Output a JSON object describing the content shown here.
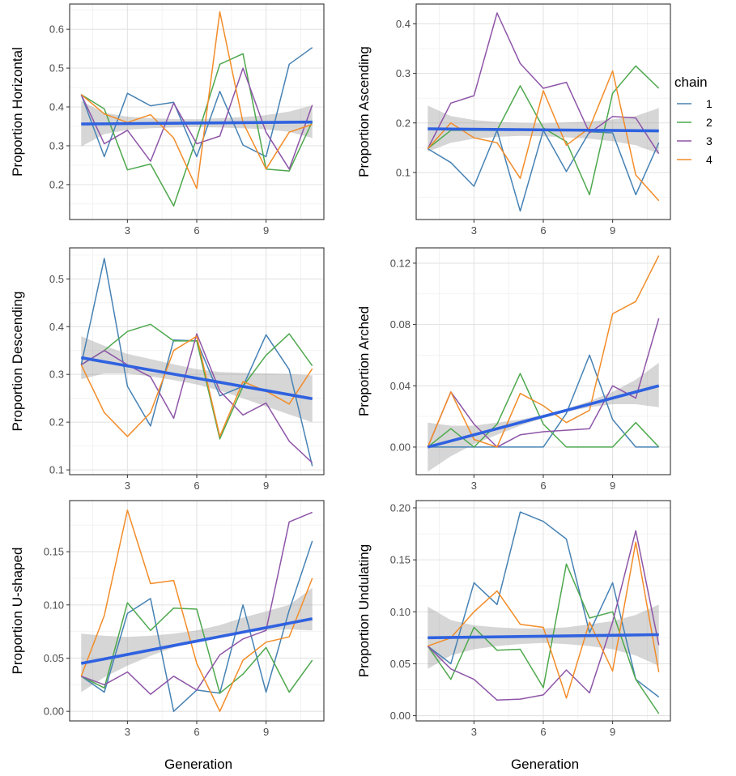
{
  "chart_data": {
    "type": "line",
    "x_title": "Generation",
    "x_ticks": [
      3,
      6,
      9
    ],
    "x_range": [
      0.5,
      11.5
    ],
    "x": [
      1,
      2,
      3,
      4,
      5,
      6,
      7,
      8,
      9,
      10,
      11
    ],
    "legend": {
      "title": "chain",
      "position": "right",
      "entries": [
        {
          "label": "1",
          "color": "#4682B4"
        },
        {
          "label": "2",
          "color": "#4DA84D"
        },
        {
          "label": "3",
          "color": "#8E55A8"
        },
        {
          "label": "4",
          "color": "#F28C28"
        }
      ]
    },
    "trend_color": "#2F62E0",
    "ribbon_color": "#999999",
    "panels": [
      {
        "id": "horizontal",
        "ylabel": "Proportion Horizontal",
        "ylim": [
          0.11,
          0.665
        ],
        "y_ticks": [
          0.2,
          0.3,
          0.4,
          0.5,
          0.6
        ],
        "y_tick_labels": [
          "0.2",
          "0.3",
          "0.4",
          "0.5",
          "0.6"
        ],
        "series": [
          {
            "name": "1",
            "values": [
              0.432,
              0.272,
              0.435,
              0.403,
              0.412,
              0.272,
              0.44,
              0.302,
              0.272,
              0.51,
              0.553
            ]
          },
          {
            "name": "2",
            "values": [
              0.432,
              0.395,
              0.238,
              0.253,
              0.145,
              0.32,
              0.51,
              0.537,
              0.24,
              0.235,
              0.362
            ]
          },
          {
            "name": "3",
            "values": [
              0.432,
              0.305,
              0.34,
              0.26,
              0.41,
              0.305,
              0.325,
              0.5,
              0.335,
              0.24,
              0.405
            ]
          },
          {
            "name": "4",
            "values": [
              0.432,
              0.382,
              0.36,
              0.38,
              0.32,
              0.19,
              0.645,
              0.36,
              0.24,
              0.335,
              0.355
            ]
          }
        ],
        "trend": {
          "start": 0.356,
          "end": 0.361
        },
        "ribbon_lower": [
          0.298,
          0.33,
          0.341,
          0.345,
          0.347,
          0.348,
          0.347,
          0.345,
          0.342,
          0.336,
          0.32
        ],
        "ribbon_upper": [
          0.415,
          0.385,
          0.375,
          0.371,
          0.369,
          0.368,
          0.371,
          0.374,
          0.379,
          0.388,
          0.404
        ]
      },
      {
        "id": "ascending",
        "ylabel": "Proportion Ascending",
        "ylim": [
          0.005,
          0.44
        ],
        "y_ticks": [
          0.1,
          0.2,
          0.3,
          0.4
        ],
        "y_tick_labels": [
          "0.1",
          "0.2",
          "0.3",
          "0.4"
        ],
        "series": [
          {
            "name": "1",
            "values": [
              0.148,
              0.12,
              0.072,
              0.185,
              0.022,
              0.185,
              0.102,
              0.182,
              0.18,
              0.055,
              0.16
            ]
          },
          {
            "name": "2",
            "values": [
              0.148,
              0.185,
              0.185,
              0.185,
              0.275,
              0.19,
              0.162,
              0.055,
              0.26,
              0.315,
              0.27
            ]
          },
          {
            "name": "3",
            "values": [
              0.148,
              0.24,
              0.255,
              0.422,
              0.32,
              0.27,
              0.282,
              0.18,
              0.213,
              0.21,
              0.138
            ]
          },
          {
            "name": "4",
            "values": [
              0.148,
              0.2,
              0.17,
              0.16,
              0.088,
              0.265,
              0.155,
              0.19,
              0.305,
              0.095,
              0.043
            ]
          }
        ],
        "trend": {
          "start": 0.188,
          "end": 0.184
        },
        "ribbon_lower": [
          0.142,
          0.16,
          0.168,
          0.172,
          0.174,
          0.173,
          0.171,
          0.168,
          0.163,
          0.155,
          0.138
        ],
        "ribbon_upper": [
          0.235,
          0.214,
          0.206,
          0.202,
          0.2,
          0.199,
          0.201,
          0.203,
          0.207,
          0.214,
          0.23
        ]
      },
      {
        "id": "descending",
        "ylabel": "Proportion Descending",
        "ylim": [
          0.09,
          0.565
        ],
        "y_ticks": [
          0.1,
          0.2,
          0.3,
          0.4,
          0.5
        ],
        "y_tick_labels": [
          "0.1",
          "0.2",
          "0.3",
          "0.4",
          "0.5"
        ],
        "series": [
          {
            "name": "1",
            "values": [
              0.32,
              0.543,
              0.275,
              0.192,
              0.372,
              0.37,
              0.255,
              0.275,
              0.383,
              0.31,
              0.108
            ]
          },
          {
            "name": "2",
            "values": [
              0.32,
              0.35,
              0.39,
              0.405,
              0.37,
              0.37,
              0.165,
              0.275,
              0.34,
              0.385,
              0.318
            ]
          },
          {
            "name": "3",
            "values": [
              0.32,
              0.35,
              0.32,
              0.295,
              0.208,
              0.385,
              0.265,
              0.215,
              0.24,
              0.16,
              0.115
            ]
          },
          {
            "name": "4",
            "values": [
              0.32,
              0.22,
              0.17,
              0.22,
              0.35,
              0.38,
              0.17,
              0.285,
              0.265,
              0.238,
              0.312
            ]
          }
        ],
        "trend": {
          "start": 0.335,
          "end": 0.249
        },
        "ribbon_lower": [
          0.29,
          0.302,
          0.302,
          0.296,
          0.288,
          0.279,
          0.266,
          0.25,
          0.233,
          0.216,
          0.2
        ],
        "ribbon_upper": [
          0.38,
          0.36,
          0.343,
          0.332,
          0.321,
          0.311,
          0.305,
          0.303,
          0.302,
          0.301,
          0.298
        ]
      },
      {
        "id": "arched",
        "ylabel": "Proportion Arched",
        "ylim": [
          -0.018,
          0.13
        ],
        "y_ticks": [
          0.0,
          0.04,
          0.08,
          0.12
        ],
        "y_tick_labels": [
          "0.00",
          "0.04",
          "0.08",
          "0.12"
        ],
        "series": [
          {
            "name": "1",
            "values": [
              0.0,
              0.0,
              0.0,
              0.0,
              0.0,
              0.0,
              0.022,
              0.06,
              0.018,
              0.0,
              0.0
            ]
          },
          {
            "name": "2",
            "values": [
              0.0,
              0.012,
              0.0,
              0.015,
              0.048,
              0.015,
              0.0,
              0.0,
              0.0,
              0.016,
              0.0
            ]
          },
          {
            "name": "3",
            "values": [
              0.0,
              0.036,
              0.015,
              0.0,
              0.008,
              0.01,
              0.011,
              0.012,
              0.04,
              0.032,
              0.084
            ]
          },
          {
            "name": "4",
            "values": [
              0.0,
              0.036,
              0.005,
              0.0,
              0.035,
              0.027,
              0.016,
              0.024,
              0.087,
              0.095,
              0.125
            ]
          }
        ],
        "trend": {
          "start": 0.0,
          "end": 0.04
        },
        "ribbon_lower": [
          -0.016,
          -0.006,
          0.002,
          0.008,
          0.014,
          0.019,
          0.023,
          0.026,
          0.028,
          0.028,
          0.026
        ],
        "ribbon_upper": [
          0.016,
          0.014,
          0.014,
          0.016,
          0.018,
          0.021,
          0.025,
          0.03,
          0.036,
          0.044,
          0.055
        ]
      },
      {
        "id": "ushaped",
        "ylabel": "Proportion U-shaped",
        "ylim": [
          -0.009,
          0.198
        ],
        "y_ticks": [
          0.0,
          0.05,
          0.1,
          0.15
        ],
        "y_tick_labels": [
          "0.00",
          "0.05",
          "0.10",
          "0.15"
        ],
        "series": [
          {
            "name": "1",
            "values": [
              0.033,
              0.018,
              0.092,
              0.106,
              0.0,
              0.02,
              0.017,
              0.1,
              0.018,
              0.095,
              0.16
            ]
          },
          {
            "name": "2",
            "values": [
              0.033,
              0.022,
              0.102,
              0.076,
              0.097,
              0.096,
              0.017,
              0.035,
              0.06,
              0.018,
              0.048
            ]
          },
          {
            "name": "3",
            "values": [
              0.033,
              0.025,
              0.037,
              0.016,
              0.033,
              0.02,
              0.053,
              0.068,
              0.076,
              0.178,
              0.187
            ]
          },
          {
            "name": "4",
            "values": [
              0.033,
              0.09,
              0.189,
              0.12,
              0.123,
              0.045,
              0.0,
              0.048,
              0.065,
              0.07,
              0.125
            ]
          }
        ],
        "trend": {
          "start": 0.045,
          "end": 0.087
        },
        "ribbon_lower": [
          0.018,
          0.032,
          0.043,
          0.052,
          0.06,
          0.066,
          0.071,
          0.074,
          0.076,
          0.077,
          0.076
        ],
        "ribbon_upper": [
          0.073,
          0.071,
          0.07,
          0.071,
          0.073,
          0.076,
          0.081,
          0.088,
          0.094,
          0.1,
          0.116
        ]
      },
      {
        "id": "undulating",
        "ylabel": "Proportion Undulating",
        "ylim": [
          -0.005,
          0.207
        ],
        "y_ticks": [
          0.0,
          0.05,
          0.1,
          0.15,
          0.2
        ],
        "y_tick_labels": [
          "0.00",
          "0.05",
          "0.10",
          "0.15",
          "0.20"
        ],
        "series": [
          {
            "name": "1",
            "values": [
              0.067,
              0.05,
              0.128,
              0.107,
              0.196,
              0.187,
              0.17,
              0.08,
              0.128,
              0.035,
              0.018
            ]
          },
          {
            "name": "2",
            "values": [
              0.067,
              0.035,
              0.085,
              0.063,
              0.064,
              0.027,
              0.146,
              0.094,
              0.1,
              0.035,
              0.002
            ]
          },
          {
            "name": "3",
            "values": [
              0.067,
              0.045,
              0.035,
              0.015,
              0.016,
              0.02,
              0.044,
              0.022,
              0.09,
              0.178,
              0.068
            ]
          },
          {
            "name": "4",
            "values": [
              0.067,
              0.075,
              0.1,
              0.12,
              0.088,
              0.085,
              0.017,
              0.09,
              0.043,
              0.167,
              0.042
            ]
          }
        ],
        "trend": {
          "start": 0.075,
          "end": 0.078
        },
        "ribbon_lower": [
          0.045,
          0.058,
          0.064,
          0.067,
          0.069,
          0.07,
          0.069,
          0.067,
          0.064,
          0.058,
          0.048
        ],
        "ribbon_upper": [
          0.105,
          0.092,
          0.087,
          0.085,
          0.084,
          0.084,
          0.085,
          0.088,
          0.091,
          0.097,
          0.107
        ]
      }
    ]
  }
}
